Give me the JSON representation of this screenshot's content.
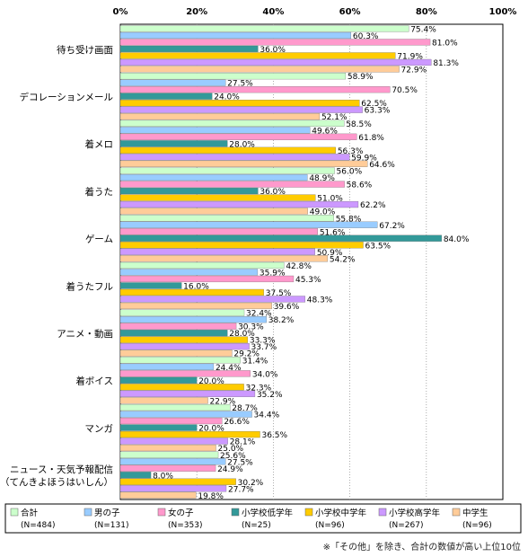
{
  "chart_data": {
    "type": "bar",
    "orientation": "horizontal",
    "xlim": [
      0,
      100
    ],
    "x_ticks": [
      "0%",
      "20%",
      "40%",
      "60%",
      "80%",
      "100%"
    ],
    "categories": [
      "待ち受け画面",
      "デコレーションメール",
      "着メロ",
      "着うた",
      "ゲーム",
      "着うたフル",
      "アニメ・動画",
      "着ボイス",
      "マンガ",
      "ニュース・天気予報配信（てんきよほうはいしん）"
    ],
    "series": [
      {
        "name": "合計",
        "n": "(N=484)",
        "color": "#ccffcc",
        "values": [
          75.4,
          58.9,
          58.5,
          56.0,
          55.8,
          42.8,
          32.4,
          31.4,
          28.7,
          25.6
        ]
      },
      {
        "name": "男の子",
        "n": "(N=131)",
        "color": "#99ccff",
        "values": [
          60.3,
          27.5,
          49.6,
          48.9,
          67.2,
          35.9,
          38.2,
          24.4,
          34.4,
          27.5
        ]
      },
      {
        "name": "女の子",
        "n": "(N=353)",
        "color": "#ff99cc",
        "values": [
          81.0,
          70.5,
          61.8,
          58.6,
          51.6,
          45.3,
          30.3,
          34.0,
          26.6,
          24.9
        ]
      },
      {
        "name": "小学校低学年",
        "n": "(N=25)",
        "color": "#339999",
        "values": [
          36.0,
          24.0,
          28.0,
          36.0,
          84.0,
          16.0,
          28.0,
          20.0,
          20.0,
          8.0
        ]
      },
      {
        "name": "小学校中学年",
        "n": "(N=96)",
        "color": "#ffcc00",
        "values": [
          71.9,
          62.5,
          56.3,
          51.0,
          63.5,
          37.5,
          33.3,
          32.3,
          36.5,
          30.2
        ]
      },
      {
        "name": "小学校高学年",
        "n": "(N=267)",
        "color": "#cc99ff",
        "values": [
          81.3,
          63.3,
          59.9,
          62.2,
          50.9,
          48.3,
          33.7,
          35.2,
          28.1,
          27.7
        ]
      },
      {
        "name": "中学生",
        "n": "(N=96)",
        "color": "#ffcc99",
        "values": [
          72.9,
          52.1,
          64.6,
          49.0,
          54.2,
          39.6,
          29.2,
          22.9,
          25.0,
          19.8
        ]
      }
    ]
  },
  "footnote": "※「その他」を除き、合計の数値が高い上位10位"
}
